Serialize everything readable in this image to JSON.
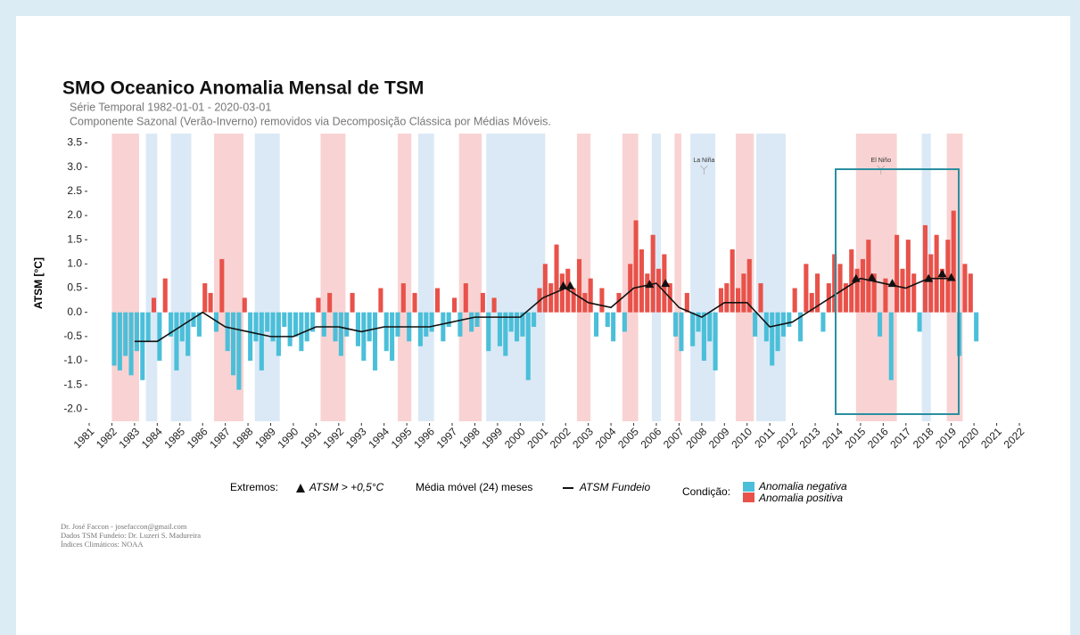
{
  "chart_data": {
    "type": "bar",
    "title": "SMO Oceanico Anomalia Mensal de TSM",
    "subtitle": "Série Temporal  1982-01-01 - 2020-03-01",
    "subtitle2": "Componente Sazonal (Verão-Inverno) removidos via Decomposição Clássica por Médias Móveis.",
    "y_label": "ATSM [°C]",
    "xlim": [
      1981,
      2022
    ],
    "xticks": [
      1981,
      1982,
      1983,
      1984,
      1985,
      1986,
      1987,
      1988,
      1989,
      1990,
      1991,
      1992,
      1993,
      1994,
      1995,
      1996,
      1997,
      1998,
      1999,
      2000,
      2001,
      2002,
      2003,
      2004,
      2005,
      2006,
      2007,
      2008,
      2009,
      2010,
      2011,
      2012,
      2013,
      2014,
      2015,
      2016,
      2017,
      2018,
      2019,
      2020,
      2021,
      2022
    ],
    "ylim": [
      -2.25,
      3.6
    ],
    "yticks": [
      3.5,
      {
        "value": 3,
        "label": "3.0"
      },
      2.5,
      {
        "value": 2,
        "label": "2.0"
      },
      1.5,
      {
        "value": 1,
        "label": "1.0"
      },
      0.5,
      {
        "value": 0,
        "label": "0.0"
      },
      -0.5,
      {
        "value": -1,
        "label": "-1.0"
      },
      -1.5,
      {
        "value": -2,
        "label": "-2.0"
      }
    ],
    "positive_color": "#e8524a",
    "negative_color": "#4bbfd9",
    "x": [
      1982,
      1982.25,
      1982.5,
      1982.75,
      1983,
      1983.25,
      1983.5,
      1983.75,
      1984,
      1984.25,
      1984.5,
      1984.75,
      1985,
      1985.25,
      1985.5,
      1985.75,
      1986,
      1986.25,
      1986.5,
      1986.75,
      1987,
      1987.25,
      1987.5,
      1987.75,
      1988,
      1988.25,
      1988.5,
      1988.75,
      1989,
      1989.25,
      1989.5,
      1989.75,
      1990,
      1990.25,
      1990.5,
      1990.75,
      1991,
      1991.25,
      1991.5,
      1991.75,
      1992,
      1992.25,
      1992.5,
      1992.75,
      1993,
      1993.25,
      1993.5,
      1993.75,
      1994,
      1994.25,
      1994.5,
      1994.75,
      1995,
      1995.25,
      1995.5,
      1995.75,
      1996,
      1996.25,
      1996.5,
      1996.75,
      1997,
      1997.25,
      1997.5,
      1997.75,
      1998,
      1998.25,
      1998.5,
      1998.75,
      1999,
      1999.25,
      1999.5,
      1999.75,
      2000,
      2000.25,
      2000.5,
      2000.75,
      2001,
      2001.25,
      2001.5,
      2001.75,
      2002,
      2002.25,
      2002.5,
      2002.75,
      2003,
      2003.25,
      2003.5,
      2003.75,
      2004,
      2004.25,
      2004.5,
      2004.75,
      2005,
      2005.25,
      2005.5,
      2005.75,
      2006,
      2006.25,
      2006.5,
      2006.75,
      2007,
      2007.25,
      2007.5,
      2007.75,
      2008,
      2008.25,
      2008.5,
      2008.75,
      2009,
      2009.25,
      2009.5,
      2009.75,
      2010,
      2010.25,
      2010.5,
      2010.75,
      2011,
      2011.25,
      2011.5,
      2011.75,
      2012,
      2012.25,
      2012.5,
      2012.75,
      2013,
      2013.25,
      2013.5,
      2013.75,
      2014,
      2014.25,
      2014.5,
      2014.75,
      2015,
      2015.25,
      2015.5,
      2015.75,
      2016,
      2016.25,
      2016.5,
      2016.75,
      2017,
      2017.25,
      2017.5,
      2017.75,
      2018,
      2018.25,
      2018.5,
      2018.75,
      2019,
      2019.25,
      2019.5,
      2019.75,
      2020
    ],
    "values": [
      -1.1,
      -1.2,
      -0.9,
      -1.3,
      -0.8,
      -1.4,
      -0.6,
      0.3,
      -1.0,
      0.7,
      -0.5,
      -1.2,
      -0.6,
      -0.9,
      -0.3,
      -0.5,
      0.6,
      0.4,
      -0.4,
      1.1,
      -0.8,
      -1.3,
      -1.6,
      0.3,
      -1.0,
      -0.6,
      -1.2,
      -0.4,
      -0.6,
      -0.9,
      -0.3,
      -0.7,
      -0.5,
      -0.8,
      -0.6,
      -0.4,
      0.3,
      -0.5,
      0.4,
      -0.6,
      -0.9,
      -0.5,
      0.4,
      -0.7,
      -1.0,
      -0.6,
      -1.2,
      0.5,
      -0.8,
      -1.0,
      -0.5,
      0.6,
      -0.6,
      0.4,
      -0.7,
      -0.5,
      -0.4,
      0.5,
      -0.6,
      -0.3,
      0.3,
      -0.5,
      0.6,
      -0.4,
      -0.3,
      0.4,
      -0.8,
      0.3,
      -0.7,
      -0.9,
      -0.4,
      -0.6,
      -0.5,
      -1.4,
      -0.3,
      0.5,
      1.0,
      0.6,
      1.4,
      0.8,
      0.9,
      0.5,
      1.1,
      0.4,
      0.7,
      -0.5,
      0.5,
      -0.3,
      -0.6,
      0.4,
      -0.4,
      1.0,
      1.9,
      1.3,
      0.8,
      1.6,
      0.9,
      1.2,
      0.6,
      -0.5,
      -0.8,
      0.4,
      -0.7,
      -0.4,
      -1.0,
      -0.6,
      -1.2,
      0.5,
      0.6,
      1.3,
      0.5,
      0.8,
      1.1,
      -0.5,
      0.6,
      -0.6,
      -1.1,
      -0.8,
      -0.5,
      -0.3,
      0.5,
      -0.6,
      1.0,
      0.4,
      0.8,
      -0.4,
      0.6,
      1.2,
      1.0,
      0.6,
      1.3,
      0.9,
      1.1,
      1.5,
      0.8,
      -0.5,
      0.7,
      -1.4,
      1.6,
      0.9,
      1.5,
      0.8,
      -0.4,
      1.8,
      1.2,
      1.6,
      0.9,
      1.5,
      2.1,
      -0.9,
      1.0,
      0.8,
      -0.6
    ],
    "moving_average": {
      "name": "ATSM Fundeio",
      "color": "#111111",
      "x": [
        1983,
        1984,
        1985,
        1986,
        1987,
        1988,
        1989,
        1990,
        1991,
        1992,
        1993,
        1994,
        1995,
        1996,
        1997,
        1998,
        1999,
        2000,
        2001,
        2002,
        2003,
        2004,
        2005,
        2006,
        2007,
        2008,
        2009,
        2010,
        2011,
        2012,
        2013,
        2014,
        2015,
        2016,
        2017,
        2018,
        2019
      ],
      "values": [
        -0.6,
        -0.6,
        -0.3,
        0.0,
        -0.3,
        -0.4,
        -0.5,
        -0.5,
        -0.3,
        -0.3,
        -0.4,
        -0.3,
        -0.3,
        -0.3,
        -0.2,
        -0.1,
        -0.1,
        -0.1,
        0.3,
        0.5,
        0.2,
        0.1,
        0.5,
        0.6,
        0.1,
        -0.1,
        0.2,
        0.2,
        -0.3,
        -0.2,
        0.1,
        0.4,
        0.7,
        0.6,
        0.5,
        0.7,
        0.7
      ]
    },
    "extremes": {
      "x": [
        2001.9,
        2002.2,
        2005.7,
        2006.4,
        2014.8,
        2015.5,
        2016.4,
        2018.0,
        2018.6,
        2019.0
      ],
      "values": [
        0.55,
        0.55,
        0.58,
        0.6,
        0.7,
        0.72,
        0.6,
        0.7,
        0.8,
        0.72
      ]
    },
    "enso_periods": [
      {
        "start": 1982.0,
        "end": 1983.2,
        "color": "#f9d3d3"
      },
      {
        "start": 1983.5,
        "end": 1984.0,
        "color": "#dbe9f6"
      },
      {
        "start": 1984.6,
        "end": 1985.5,
        "color": "#dbe9f6"
      },
      {
        "start": 1986.5,
        "end": 1987.8,
        "color": "#f9d3d3"
      },
      {
        "start": 1988.3,
        "end": 1989.4,
        "color": "#dbe9f6"
      },
      {
        "start": 1991.2,
        "end": 1992.3,
        "color": "#f9d3d3"
      },
      {
        "start": 1994.6,
        "end": 1995.2,
        "color": "#f9d3d3"
      },
      {
        "start": 1995.5,
        "end": 1996.2,
        "color": "#dbe9f6"
      },
      {
        "start": 1997.3,
        "end": 1998.3,
        "color": "#f9d3d3"
      },
      {
        "start": 1998.5,
        "end": 2001.1,
        "color": "#dbe9f6"
      },
      {
        "start": 2002.5,
        "end": 2003.1,
        "color": "#f9d3d3"
      },
      {
        "start": 2004.5,
        "end": 2005.2,
        "color": "#f9d3d3"
      },
      {
        "start": 2005.8,
        "end": 2006.2,
        "color": "#dbe9f6"
      },
      {
        "start": 2006.8,
        "end": 2007.1,
        "color": "#f9d3d3"
      },
      {
        "start": 2007.5,
        "end": 2008.6,
        "color": "#dbe9f6"
      },
      {
        "start": 2009.5,
        "end": 2010.3,
        "color": "#f9d3d3"
      },
      {
        "start": 2010.4,
        "end": 2011.7,
        "color": "#dbe9f6"
      },
      {
        "start": 2014.8,
        "end": 2016.6,
        "color": "#f9d3d3"
      },
      {
        "start": 2017.7,
        "end": 2018.1,
        "color": "#dbe9f6"
      },
      {
        "start": 2018.8,
        "end": 2019.5,
        "color": "#f9d3d3"
      }
    ],
    "annotations": [
      {
        "text": "La Niña",
        "x": 2008.1
      },
      {
        "text": "El Niño",
        "x": 2015.9
      }
    ],
    "legend": {
      "extremes_title": "Extremos:",
      "extremes_label": "ATSM > +0,5°C",
      "ma_title": "Média móvel (24) meses",
      "condition_title": "Condição:",
      "negative_name": "Anomalia negativa",
      "positive_name": "Anomalia positiva"
    },
    "credits": [
      "Dr. José Faccon - josefaccon@gmail.com",
      "Dados TSM Fundeio: Dr. Luzeri S. Madureira",
      "Índices Climáticos: NOAA"
    ]
  }
}
